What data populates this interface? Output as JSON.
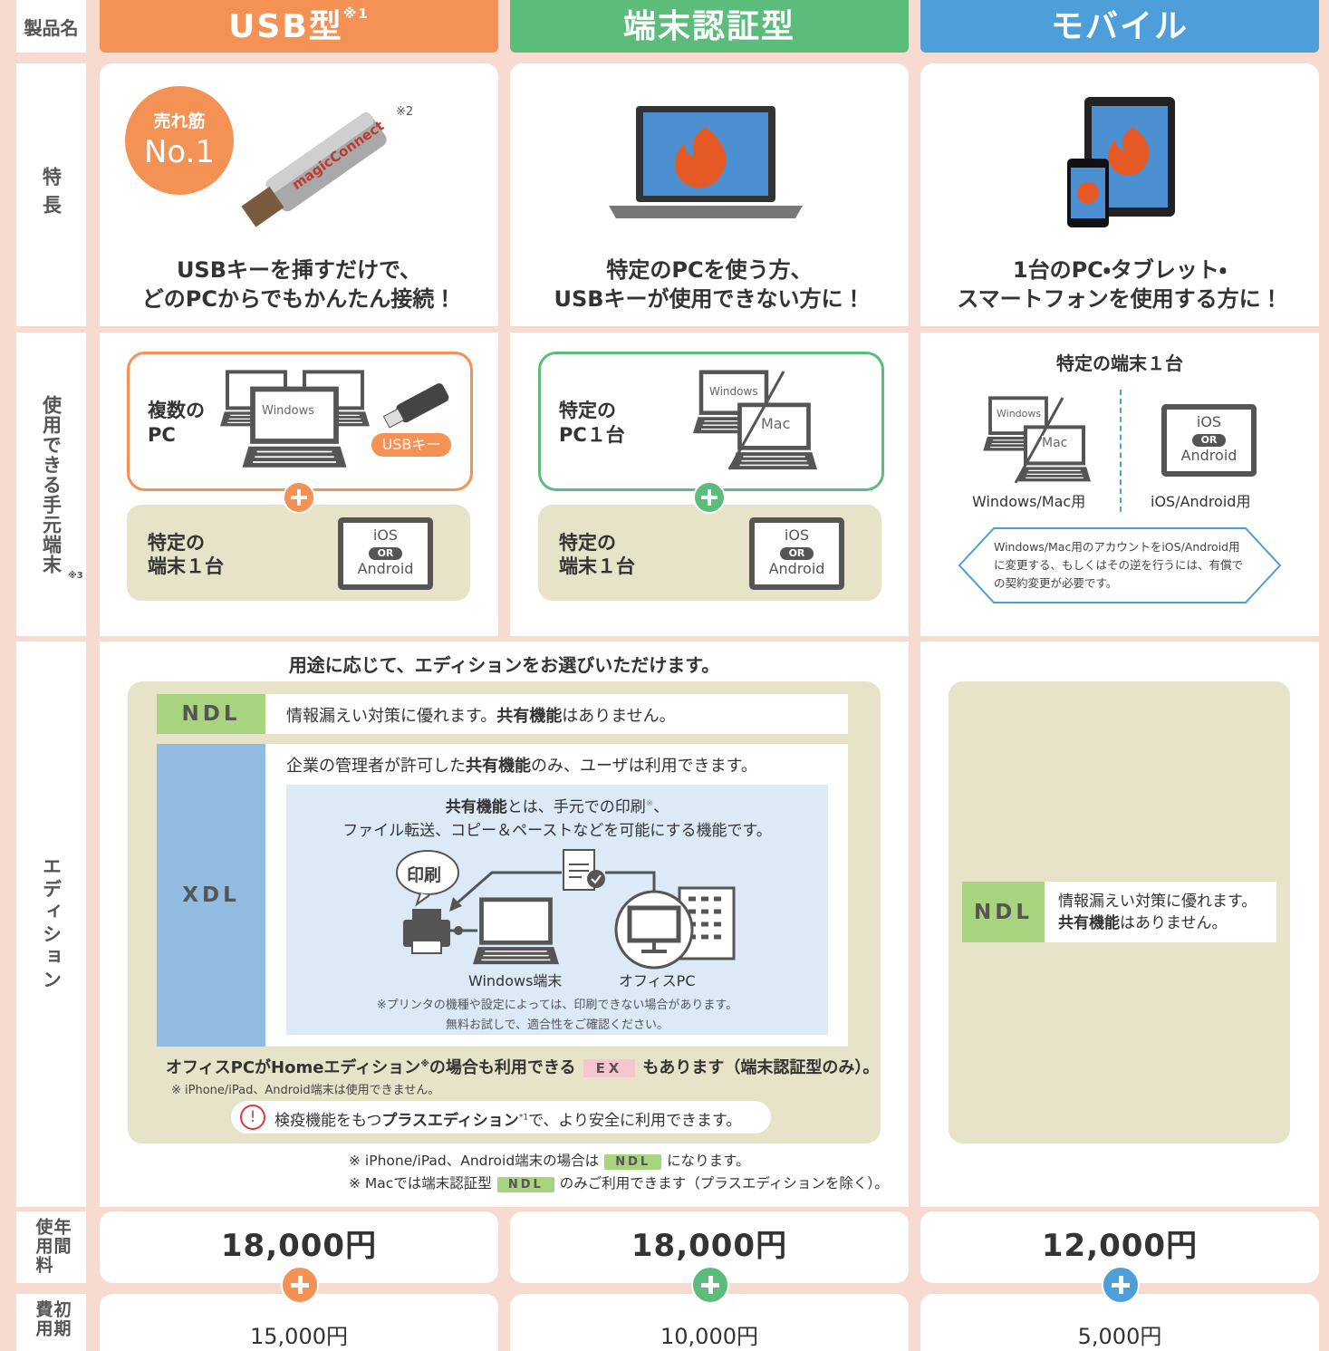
{
  "row_labels": {
    "product": "製品名",
    "feature": "特長",
    "devices": "使用できる手元端末",
    "devices_note": "※3",
    "edition": "エディション",
    "annual_fee": [
      "年間",
      "使用料"
    ],
    "initial_fee": [
      "初期",
      "費用"
    ]
  },
  "products": [
    {
      "name": "USB型",
      "name_note": "※1",
      "color": "#f39254",
      "feature_lines": [
        "USBキーを挿すだけで、",
        "どのPCからでもかんたん接続！"
      ],
      "annual_fee": "18,000円",
      "initial_fee": "15,000円"
    },
    {
      "name": "端末認証型",
      "color": "#5cbc7b",
      "feature_lines": [
        "特定のPCを使う方、",
        "USBキーが使用できない方に！"
      ],
      "annual_fee": "18,000円",
      "initial_fee": "10,000円"
    },
    {
      "name": "モバイル",
      "color": "#4d9ed9",
      "feature_lines": [
        "1台のPC・タブレット・",
        "スマートフォンを使用する方に！"
      ],
      "annual_fee": "12,000円",
      "initial_fee": "5,000円"
    }
  ],
  "badge": {
    "top": "売れ筋",
    "number": "No.1",
    "note": "※2",
    "brand": "magicConnect"
  },
  "usb_devices": {
    "title_lines": [
      "複数の",
      "PC"
    ],
    "os": "Windows",
    "key": "USBキー",
    "specific_lines": [
      "特定の",
      "端末１台"
    ],
    "tablet": [
      "iOS",
      "OR",
      "Android"
    ]
  },
  "terminal_devices": {
    "title_lines": [
      "特定の",
      "PC１台"
    ],
    "os": [
      "Windows",
      "Mac"
    ],
    "specific_lines": [
      "特定の",
      "端末１台"
    ],
    "tablet": [
      "iOS",
      "OR",
      "Android"
    ]
  },
  "mobile_devices": {
    "title": "特定の端末１台",
    "os": [
      "Windows",
      "Mac"
    ],
    "pc_label": "Windows/Mac用",
    "tablet": [
      "iOS",
      "OR",
      "Android"
    ],
    "tablet_label": "iOS/Android用",
    "note": "Windows/Mac用のアカウントをiOS/Android用に変更する、もしくはその逆を行うには、有償での契約変更が必要です。"
  },
  "edition": {
    "heading": "用途に応じて、エディションをお選びいただけます。",
    "ndl": {
      "tag": "NDL",
      "text": [
        "情報漏えい対策に優れます。",
        "共有機能",
        "はありません。"
      ]
    },
    "xdl": {
      "tag": "XDL",
      "text": [
        "企業の管理者が許可した",
        "共有機能",
        "のみ、ユーザは利用できます。"
      ],
      "box_line1": [
        "共有機能",
        "とは、手元での印刷",
        "※",
        "、"
      ],
      "box_line2": "ファイル転送、コピー＆ペーストなどを可能にする機能です。",
      "print_label": "印刷",
      "windows_label": "Windows端末",
      "office_label": "オフィスPC",
      "notes": [
        "※プリンタの機種や設定によっては、印刷できない場合があります。",
        "無料お試しで、適合性をご確認ください。"
      ]
    },
    "ex_line": [
      "オフィスPCがHomeエディション",
      "※",
      "の場合も利用できる",
      "EX",
      "もあります（端末認証型のみ）。"
    ],
    "ex_note": "※ iPhone/iPad、Android端末は使用できません。",
    "plus_line": [
      "!",
      "検疫機能をもつ",
      "プラスエディション",
      "*1",
      "で、より安全に利用できます。"
    ],
    "footnotes": [
      [
        "※ iPhone/iPad、Android端末の場合は",
        "NDL",
        "になります。"
      ],
      [
        "※ Macでは端末認証型",
        "NDL",
        "のみご利用できます（プラスエディションを除く）。"
      ]
    ],
    "mobile": {
      "tag": "NDL",
      "text": [
        "情報漏えい対策に優れます。",
        "共有機能",
        "はありません。"
      ]
    }
  }
}
